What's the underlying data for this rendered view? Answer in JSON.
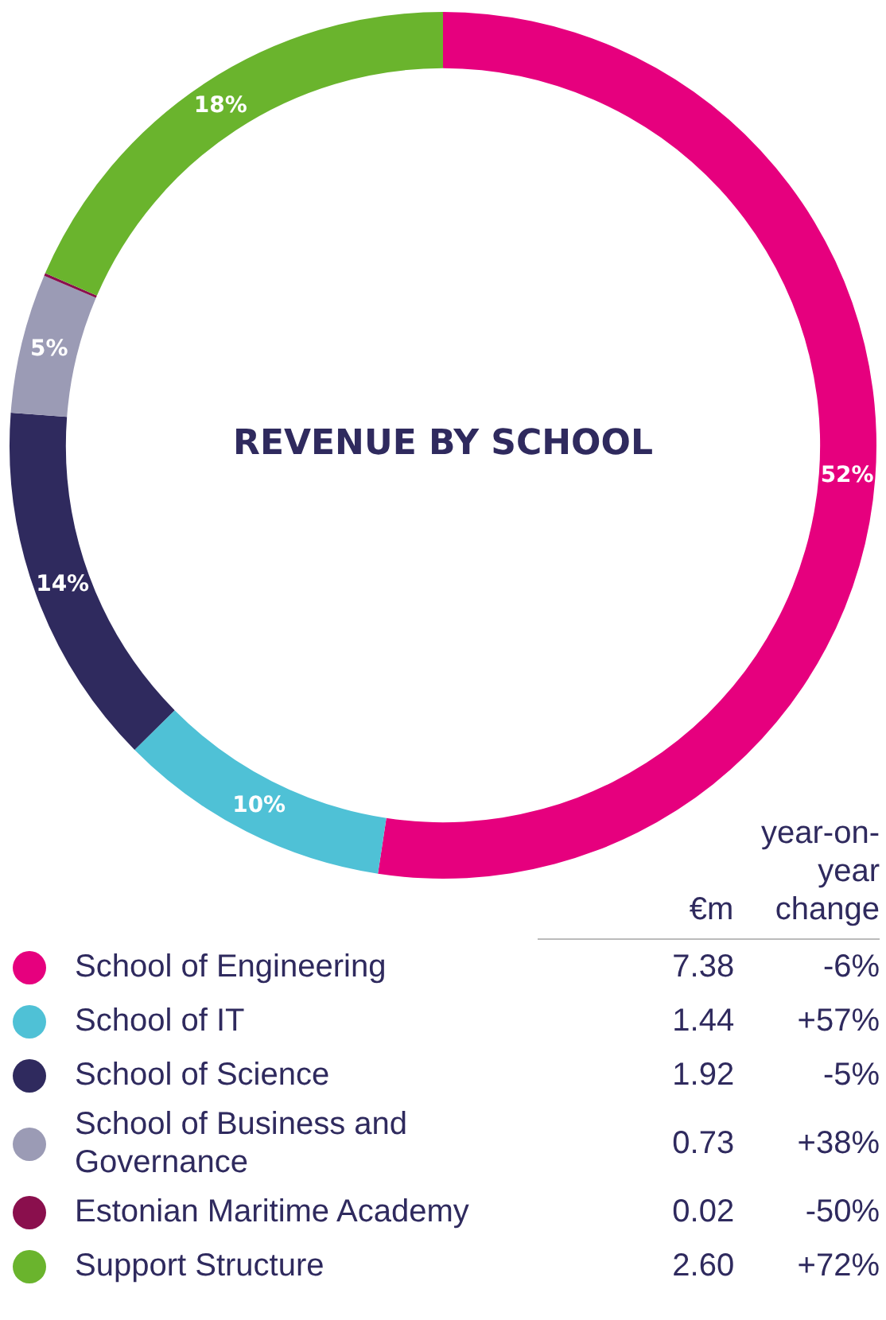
{
  "chart_data": {
    "type": "donut",
    "title": "REVENUE BY SCHOOL",
    "categories": [
      "School of Engineering",
      "School of IT",
      "School of Science",
      "School of Business and Governance",
      "Estonian Maritime Academy",
      "Support Structure"
    ],
    "values": [
      52.4,
      10.2,
      13.6,
      5.2,
      0.1,
      18.5
    ],
    "colors": [
      "#e6007e",
      "#4fc1d6",
      "#2f2a5e",
      "#9b9bb5",
      "#8a0f4d",
      "#6ab42d"
    ],
    "value_labels": [
      "52%",
      "10%",
      "14%",
      "5%",
      null,
      "18%"
    ],
    "legend": "bottom",
    "annotations": [
      "€m",
      "year-on-year change",
      "7.38",
      "-6%",
      "1.44",
      "+57%",
      "1.92",
      "-5%",
      "0.73",
      "+38%",
      "0.02",
      "-50%",
      "2.60",
      "+72%"
    ]
  }
}
